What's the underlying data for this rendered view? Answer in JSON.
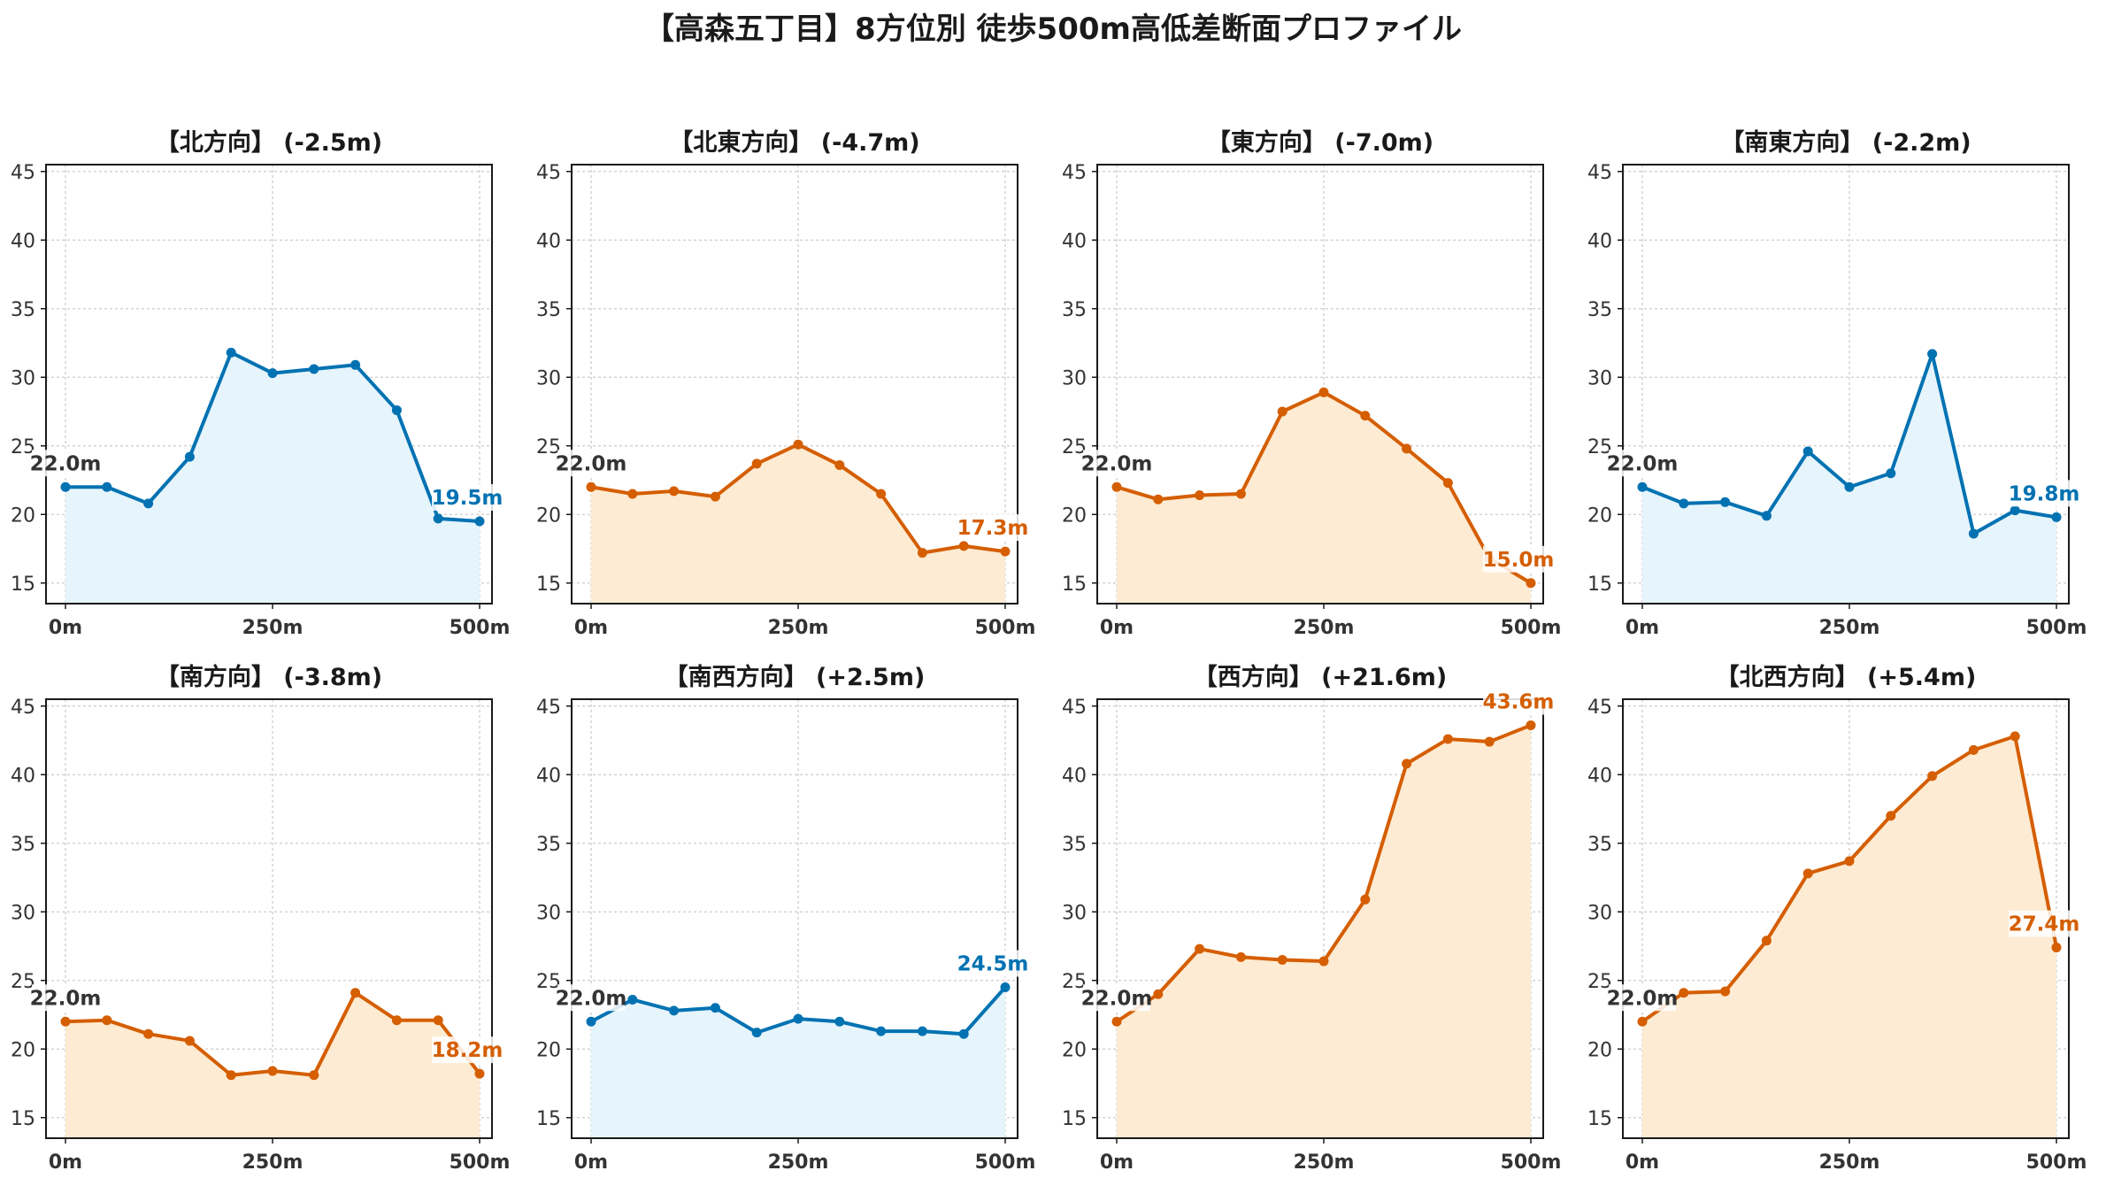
{
  "figure_title": "【高森五丁目】8方位別 徒歩500m高低差断面プロファイル",
  "colors": {
    "down_line": "#0072b2",
    "down_fill": "#e6f4fb",
    "up_line": "#d55e00",
    "up_fill": "#fdebd3",
    "start_label": "#333333",
    "grid": "#cccccc"
  },
  "chart_data": [
    {
      "type": "area",
      "title": "【北方向】 (-2.5m)",
      "trend": "down",
      "x": [
        0,
        50,
        100,
        150,
        200,
        250,
        300,
        350,
        400,
        450,
        500
      ],
      "y": [
        22.0,
        22.0,
        20.8,
        24.2,
        31.8,
        30.3,
        30.6,
        30.9,
        27.6,
        19.7,
        19.5
      ],
      "start_label": "22.0m",
      "end_label": "19.5m",
      "xticks": [
        "0m",
        "250m",
        "500m"
      ],
      "yticks": [
        15,
        20,
        25,
        30,
        35,
        40,
        45
      ],
      "xlim": [
        0,
        500
      ],
      "ylim": [
        13.5,
        45.5
      ],
      "grid": true
    },
    {
      "type": "area",
      "title": "【北東方向】 (-4.7m)",
      "trend": "up",
      "x": [
        0,
        50,
        100,
        150,
        200,
        250,
        300,
        350,
        400,
        450,
        500
      ],
      "y": [
        22.0,
        21.5,
        21.7,
        21.3,
        23.7,
        25.1,
        23.6,
        21.5,
        17.2,
        17.7,
        17.3
      ],
      "start_label": "22.0m",
      "end_label": "17.3m",
      "xticks": [
        "0m",
        "250m",
        "500m"
      ],
      "yticks": [
        15,
        20,
        25,
        30,
        35,
        40,
        45
      ],
      "xlim": [
        0,
        500
      ],
      "ylim": [
        13.5,
        45.5
      ],
      "grid": true
    },
    {
      "type": "area",
      "title": "【東方向】 (-7.0m)",
      "trend": "up",
      "x": [
        0,
        50,
        100,
        150,
        200,
        250,
        300,
        350,
        400,
        450,
        500
      ],
      "y": [
        22.0,
        21.1,
        21.4,
        21.5,
        27.5,
        28.9,
        27.2,
        24.8,
        22.3,
        16.8,
        15.0
      ],
      "start_label": "22.0m",
      "end_label": "15.0m",
      "xticks": [
        "0m",
        "250m",
        "500m"
      ],
      "yticks": [
        15,
        20,
        25,
        30,
        35,
        40,
        45
      ],
      "xlim": [
        0,
        500
      ],
      "ylim": [
        13.5,
        45.5
      ],
      "grid": true
    },
    {
      "type": "area",
      "title": "【南東方向】 (-2.2m)",
      "trend": "down",
      "x": [
        0,
        50,
        100,
        150,
        200,
        250,
        300,
        350,
        400,
        450,
        500
      ],
      "y": [
        22.0,
        20.8,
        20.9,
        19.9,
        24.6,
        22.0,
        23.0,
        31.7,
        18.6,
        20.3,
        19.8
      ],
      "start_label": "22.0m",
      "end_label": "19.8m",
      "xticks": [
        "0m",
        "250m",
        "500m"
      ],
      "yticks": [
        15,
        20,
        25,
        30,
        35,
        40,
        45
      ],
      "xlim": [
        0,
        500
      ],
      "ylim": [
        13.5,
        45.5
      ],
      "grid": true
    },
    {
      "type": "area",
      "title": "【南方向】 (-3.8m)",
      "trend": "up",
      "x": [
        0,
        50,
        100,
        150,
        200,
        250,
        300,
        350,
        400,
        450,
        500
      ],
      "y": [
        22.0,
        22.1,
        21.1,
        20.6,
        18.1,
        18.4,
        18.1,
        24.1,
        22.1,
        22.1,
        18.2
      ],
      "start_label": "22.0m",
      "end_label": "18.2m",
      "xticks": [
        "0m",
        "250m",
        "500m"
      ],
      "yticks": [
        15,
        20,
        25,
        30,
        35,
        40,
        45
      ],
      "xlim": [
        0,
        500
      ],
      "ylim": [
        13.5,
        45.5
      ],
      "grid": true
    },
    {
      "type": "area",
      "title": "【南西方向】 (+2.5m)",
      "trend": "down",
      "x": [
        0,
        50,
        100,
        150,
        200,
        250,
        300,
        350,
        400,
        450,
        500
      ],
      "y": [
        22.0,
        23.6,
        22.8,
        23.0,
        21.2,
        22.2,
        22.0,
        21.3,
        21.3,
        21.1,
        24.5
      ],
      "start_label": "22.0m",
      "end_label": "24.5m",
      "xticks": [
        "0m",
        "250m",
        "500m"
      ],
      "yticks": [
        15,
        20,
        25,
        30,
        35,
        40,
        45
      ],
      "xlim": [
        0,
        500
      ],
      "ylim": [
        13.5,
        45.5
      ],
      "grid": true
    },
    {
      "type": "area",
      "title": "【西方向】 (+21.6m)",
      "trend": "up",
      "x": [
        0,
        50,
        100,
        150,
        200,
        250,
        300,
        350,
        400,
        450,
        500
      ],
      "y": [
        22.0,
        24.0,
        27.3,
        26.7,
        26.5,
        26.4,
        30.9,
        40.8,
        42.6,
        42.4,
        43.6
      ],
      "start_label": "22.0m",
      "end_label": "43.6m",
      "xticks": [
        "0m",
        "250m",
        "500m"
      ],
      "yticks": [
        15,
        20,
        25,
        30,
        35,
        40,
        45
      ],
      "xlim": [
        0,
        500
      ],
      "ylim": [
        13.5,
        45.5
      ],
      "grid": true
    },
    {
      "type": "area",
      "title": "【北西方向】 (+5.4m)",
      "trend": "up",
      "x": [
        0,
        50,
        100,
        150,
        200,
        250,
        300,
        350,
        400,
        450,
        500
      ],
      "y": [
        22.0,
        24.1,
        24.2,
        27.9,
        32.8,
        33.7,
        37.0,
        39.9,
        41.8,
        42.8,
        27.4
      ],
      "start_label": "22.0m",
      "end_label": "27.4m",
      "xticks": [
        "0m",
        "250m",
        "500m"
      ],
      "yticks": [
        15,
        20,
        25,
        30,
        35,
        40,
        45
      ],
      "xlim": [
        0,
        500
      ],
      "ylim": [
        13.5,
        45.5
      ],
      "grid": true
    }
  ]
}
